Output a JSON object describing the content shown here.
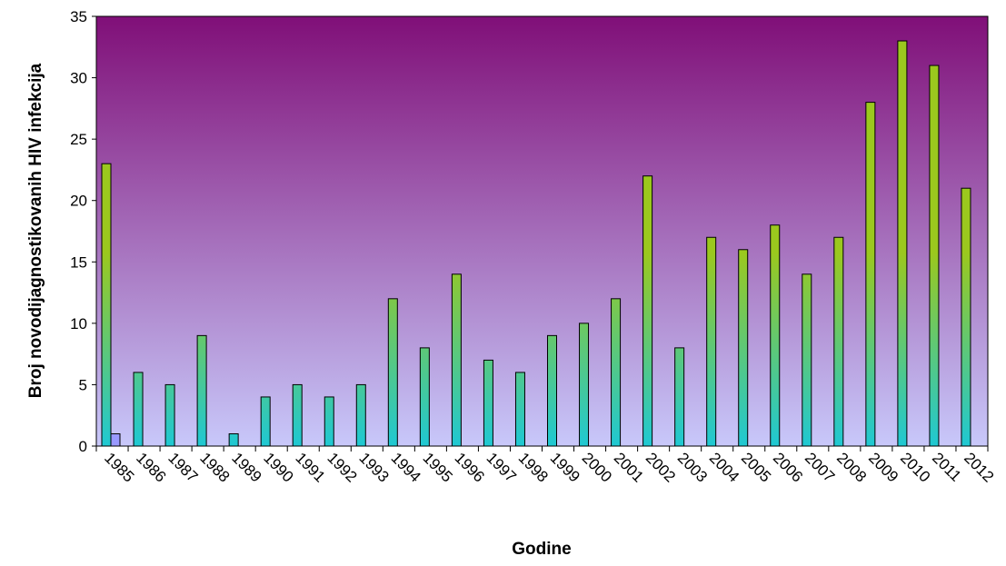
{
  "chart_data": {
    "type": "bar",
    "xlabel": "Godine",
    "ylabel": "Broj novodijagnostikovanih HIV infekcija",
    "ylim": [
      0,
      35
    ],
    "yticks": [
      0,
      5,
      10,
      15,
      20,
      25,
      30,
      35
    ],
    "grid": false,
    "legend": "none",
    "categories": [
      "1985",
      "1986",
      "1987",
      "1988",
      "1989",
      "1990",
      "1991",
      "1992",
      "1993",
      "1994",
      "1995",
      "1996",
      "1997",
      "1998",
      "1999",
      "2000",
      "2001",
      "2002",
      "2003",
      "2004",
      "2005",
      "2006",
      "2007",
      "2008",
      "2009",
      "2010",
      "2011",
      "2012"
    ],
    "series": [
      {
        "values": [
          23,
          6,
          5,
          9,
          1,
          4,
          5,
          4,
          5,
          12,
          8,
          14,
          7,
          6,
          9,
          10,
          12,
          22,
          8,
          17,
          16,
          18,
          14,
          17,
          28,
          33,
          31,
          21
        ],
        "color_top": "#9BC81E",
        "color_bottom": "#1FC8D3"
      },
      {
        "values": [
          1,
          0,
          0,
          0,
          0,
          0,
          0,
          0,
          0,
          0,
          0,
          0,
          0,
          0,
          0,
          0,
          0,
          0,
          0,
          0,
          0,
          0,
          0,
          0,
          0,
          0,
          0,
          0
        ],
        "color": "#9999FF"
      }
    ],
    "plot_background": {
      "top": "#800F78",
      "bottom": "#C8C8FA"
    }
  }
}
